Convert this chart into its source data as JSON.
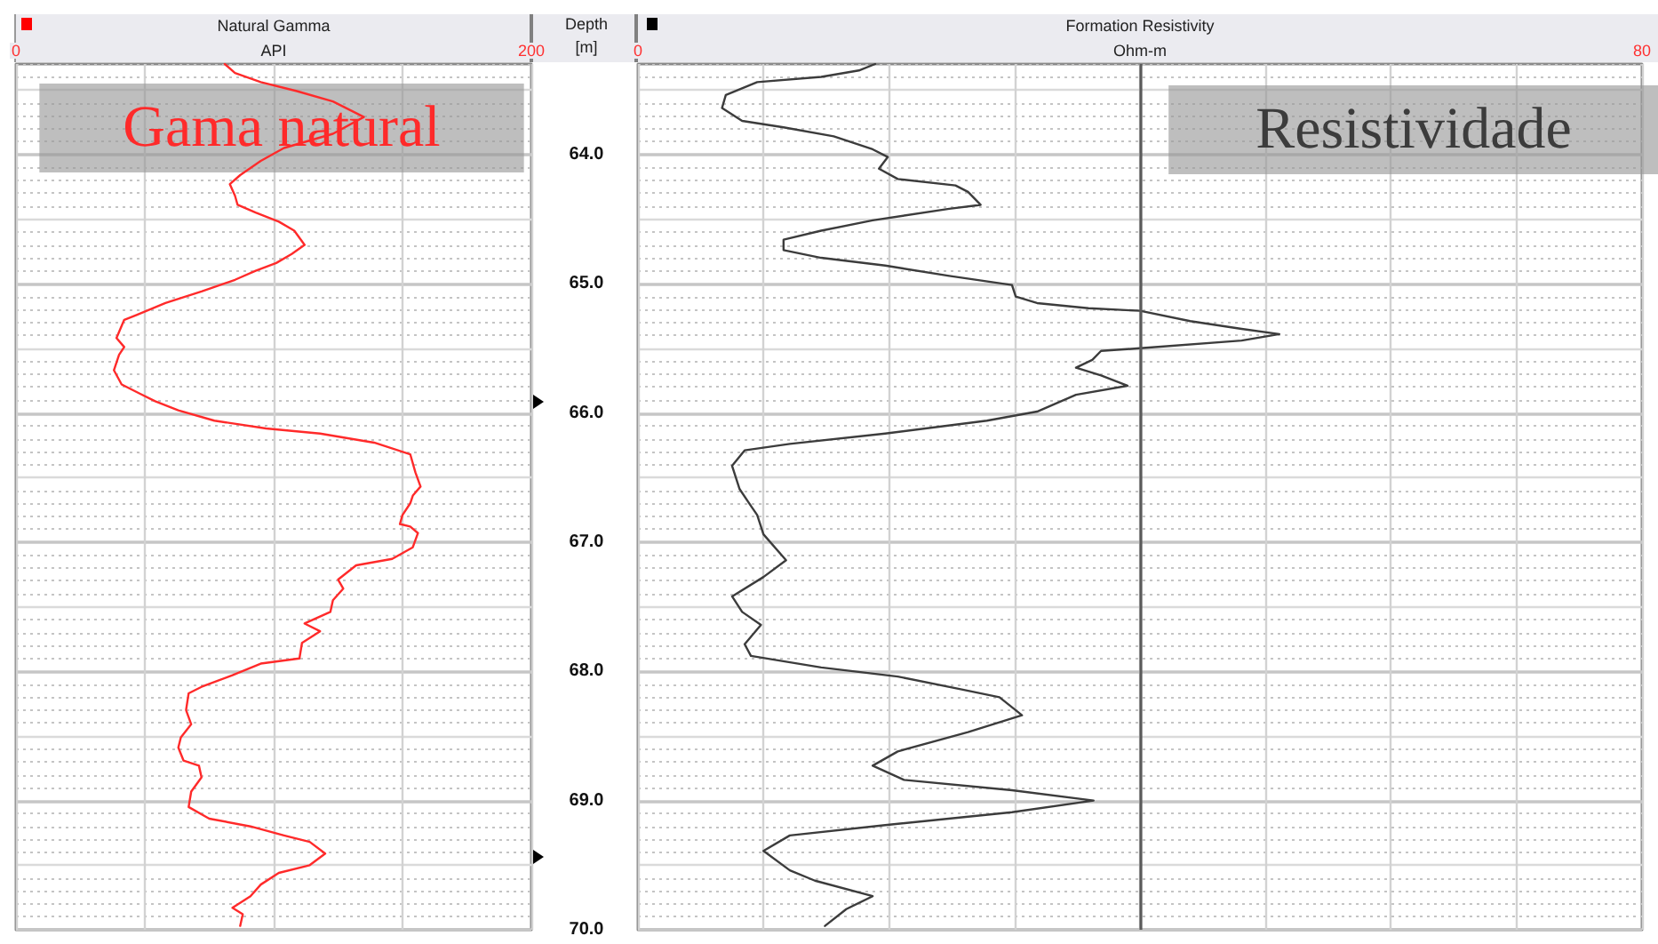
{
  "chart_data": [
    {
      "type": "line",
      "title": "Natural Gamma",
      "xlabel": "API",
      "annotations": [
        "Gama natural"
      ],
      "color": "#ff2a2a",
      "x": [
        81,
        85,
        95,
        109,
        123,
        135,
        123,
        104,
        95,
        87,
        83,
        85,
        86,
        93,
        102,
        108,
        112,
        107,
        101,
        93,
        85,
        72,
        58,
        47,
        42,
        39,
        42,
        40,
        38,
        41,
        48,
        54,
        63,
        77,
        97,
        118,
        139,
        153,
        155,
        157,
        154,
        153,
        150,
        149,
        153,
        156,
        154,
        146,
        132,
        125,
        127,
        123,
        122,
        112,
        118,
        111,
        110,
        95,
        84,
        72,
        67,
        66,
        68,
        64,
        63,
        65,
        71,
        72,
        68,
        67,
        75,
        91,
        104,
        114,
        120,
        114,
        102,
        95,
        91,
        84,
        88,
        87
      ],
      "values": [
        63.3,
        63.37,
        63.44,
        63.51,
        63.59,
        63.71,
        63.84,
        63.95,
        64.05,
        64.16,
        64.23,
        64.32,
        64.39,
        64.45,
        64.52,
        64.59,
        64.7,
        64.77,
        64.84,
        64.9,
        64.97,
        65.06,
        65.15,
        65.24,
        65.28,
        65.42,
        65.49,
        65.55,
        65.67,
        65.78,
        65.85,
        65.91,
        65.98,
        66.06,
        66.12,
        66.16,
        66.23,
        66.32,
        66.46,
        66.57,
        66.64,
        66.7,
        66.79,
        66.86,
        66.88,
        66.93,
        67.04,
        67.13,
        67.18,
        67.29,
        67.36,
        67.45,
        67.54,
        67.63,
        67.69,
        67.78,
        67.9,
        67.94,
        68.03,
        68.12,
        68.17,
        68.3,
        68.41,
        68.51,
        68.59,
        68.69,
        68.73,
        68.82,
        68.93,
        69.05,
        69.14,
        69.2,
        69.27,
        69.32,
        69.41,
        69.5,
        69.56,
        69.65,
        69.74,
        69.83,
        69.88,
        69.97
      ],
      "xlim": [
        0,
        200
      ],
      "xticks": [
        0,
        {
          "value": 50,
          "label": null
        },
        {
          "value": 100,
          "label": null
        },
        {
          "value": 150,
          "label": null
        },
        200
      ],
      "ylim": [
        70.0,
        63.3
      ],
      "yticks": [
        {
          "value": 64,
          "label": null
        },
        {
          "value": 65,
          "label": null
        },
        {
          "value": 66,
          "label": null
        },
        {
          "value": 67,
          "label": null
        },
        {
          "value": 68,
          "label": null
        },
        {
          "value": 69,
          "label": null
        },
        {
          "value": 70,
          "label": null
        }
      ],
      "tick_labels": "x",
      "grid": true
    },
    {
      "type": "line",
      "title": "Formation Resistivity",
      "xlabel": "Ohm-m",
      "ylabel": "Depth [m]",
      "annotations": [
        "Resistividade"
      ],
      "color": "#3c3c3c",
      "x": [
        18.9,
        17.6,
        14.6,
        9.5,
        7.0,
        6.7,
        8.3,
        11.6,
        15.6,
        18.7,
        19.9,
        19.2,
        20.7,
        25.3,
        26.3,
        27.3,
        24.8,
        18.7,
        14.6,
        11.6,
        11.6,
        14.6,
        19.7,
        24.8,
        29.8,
        30.1,
        31.8,
        35.9,
        40.0,
        44.0,
        48.1,
        51.1,
        48.1,
        40.0,
        36.9,
        36.2,
        34.9,
        36.9,
        39.0,
        34.9,
        31.8,
        27.8,
        19.7,
        12.1,
        8.5,
        7.5,
        8.1,
        9.0,
        9.5,
        10.0,
        11.8,
        10.0,
        7.5,
        8.3,
        9.8,
        8.5,
        9.0,
        14.6,
        20.7,
        25.8,
        28.8,
        30.6,
        26.3,
        20.7,
        18.7,
        21.2,
        29.8,
        36.3,
        29.8,
        19.7,
        12.1,
        10.0,
        12.1,
        14.1,
        18.7,
        16.6,
        14.9
      ],
      "values": [
        63.3,
        63.35,
        63.4,
        63.44,
        63.54,
        63.64,
        63.74,
        63.79,
        63.86,
        63.96,
        64.02,
        64.11,
        64.19,
        64.24,
        64.29,
        64.39,
        64.42,
        64.51,
        64.59,
        64.66,
        64.74,
        64.8,
        64.86,
        64.94,
        65.01,
        65.1,
        65.15,
        65.19,
        65.21,
        65.29,
        65.35,
        65.39,
        65.44,
        65.5,
        65.52,
        65.59,
        65.65,
        65.71,
        65.79,
        65.86,
        65.99,
        66.06,
        66.16,
        66.24,
        66.29,
        66.41,
        66.59,
        66.72,
        66.79,
        66.94,
        67.14,
        67.27,
        67.42,
        67.54,
        67.64,
        67.79,
        67.88,
        67.97,
        68.04,
        68.14,
        68.2,
        68.34,
        68.47,
        68.62,
        68.73,
        68.84,
        68.92,
        69.0,
        69.09,
        69.19,
        69.27,
        69.39,
        69.54,
        69.62,
        69.74,
        69.84,
        69.97
      ],
      "xlim": [
        0,
        80
      ],
      "xticks": [
        0,
        {
          "value": 10,
          "label": null
        },
        {
          "value": 20,
          "label": null
        },
        {
          "value": 30,
          "label": null
        },
        {
          "value": 40,
          "label": null
        },
        {
          "value": 50,
          "label": null
        },
        {
          "value": 60,
          "label": null
        },
        {
          "value": 70,
          "label": null
        },
        80
      ],
      "ylim": [
        70.0,
        63.3
      ],
      "yticks": [
        {
          "value": 64,
          "label": "64.0"
        },
        {
          "value": 65,
          "label": "65.0"
        },
        {
          "value": 66,
          "label": "66.0"
        },
        {
          "value": 67,
          "label": "67.0"
        },
        {
          "value": 68,
          "label": "68.0"
        },
        {
          "value": 69,
          "label": "69.0"
        },
        {
          "value": 70,
          "label": "70.0"
        }
      ],
      "ref_lines": [
        {
          "axis": "x",
          "value": 40,
          "color": "#5a5a5a"
        }
      ],
      "grid": true
    }
  ]
}
